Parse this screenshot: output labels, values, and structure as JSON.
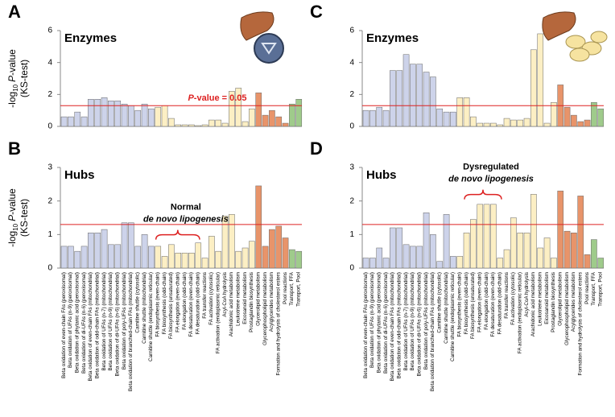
{
  "chart_data": [
    {
      "type": "bar",
      "panel": "A",
      "title": "Enzymes",
      "y_label": {
        "prefix": "-log",
        "sub": "10",
        "italic": "P",
        "rest": "-value",
        "line2": "(KS-test)"
      },
      "ylim": [
        0,
        6
      ],
      "yticks": [
        0,
        2,
        4,
        6
      ],
      "threshold": 1.3,
      "threshold_label": {
        "italic": "P",
        "rest": "-value = 0.05"
      },
      "values": [
        0.6,
        0.6,
        0.9,
        0.6,
        1.7,
        1.7,
        1.8,
        1.6,
        1.6,
        1.4,
        1.3,
        1.0,
        1.4,
        1.1,
        1.2,
        1.3,
        0.5,
        0.1,
        0.1,
        0.1,
        0.05,
        0.1,
        0.4,
        0.4,
        0.2,
        2.2,
        2.4,
        0.3,
        1.1,
        2.1,
        0.7,
        1.0,
        0.6,
        0.2,
        1.4,
        1.7
      ]
    },
    {
      "type": "bar",
      "panel": "B",
      "title": "Hubs",
      "y_label": {
        "prefix": "-log",
        "sub": "10",
        "italic": "P",
        "rest": "-value",
        "line2": "(KS-test)"
      },
      "ylim": [
        0,
        3
      ],
      "yticks": [
        0,
        1,
        2,
        3
      ],
      "threshold": 1.3,
      "annotation": {
        "line1": "Normal",
        "line2": "de novo lipogenesis"
      },
      "categories": [
        "Beta oxidation of even-chain FAs (peroxisomal)",
        "Beta oxidation of UFAs (n-9) (peroxisomal)",
        "Beta oxidation of phytanic acid (peroxisomal)",
        "Beta oxidation of di-UFAs (n-6) (peroxisomal)",
        "Beta oxidation of even-chain FAs (mitochondrial)",
        "Beta oxidation of odd-chain FAs (mitochondrial)",
        "Beta oxidation of UFAs (n-7) (mitochondrial)",
        "Beta oxidation of UFAs (n-9) (mitochondrial)",
        "Beta oxidation of di-UFAs (n-6) (mitochondrial)",
        "Beta oxidation of poly-UFAs (mitochondrial)",
        "Beta oxidation of branched-chain FAs (mitochondrial)",
        "Carnitine shuttle (cytosolic)",
        "Carnitine shuttle (mitochondrial)",
        "Carnitine shuttle (endoplasmic reticular)",
        "FA biosynthesis (even-chain)",
        "FA biosynthesis (odd-chain)",
        "FA biosynthesis (unsaturated)",
        "FA elongation (even-chain)",
        "FA elongation (odd-chain)",
        "FA desaturation (even-chain)",
        "FA desaturation (odd-chain)",
        "FA transfer reactions",
        "FA activation (cytosolic)",
        "FA activation (endoplasmic reticular)",
        "Acyl-CoA hydrolysis",
        "Arachidonic acid metabolism",
        "Leukotriene metabolism",
        "Eicosanoid metabolism",
        "Prostaglandin biosynthesis",
        "Glycerolipid metabolism",
        "Glycerophospholipid metabolism",
        "Acylglycerides metabolism",
        "Formation and hydrolysis of cholesterol esters",
        "Pool reactions",
        "Transport, FFA",
        "Transport, Pool"
      ],
      "values": [
        0.65,
        0.65,
        0.5,
        0.65,
        1.05,
        1.05,
        1.15,
        0.7,
        0.7,
        1.35,
        1.35,
        0.65,
        1.0,
        0.65,
        0.65,
        0.35,
        0.7,
        0.45,
        0.45,
        0.45,
        0.75,
        0.3,
        0.95,
        0.5,
        1.55,
        1.6,
        0.5,
        0.6,
        0.8,
        2.45,
        0.65,
        1.15,
        1.25,
        0.9,
        0.55,
        0.5
      ]
    },
    {
      "type": "bar",
      "panel": "C",
      "title": "Enzymes",
      "ylim": [
        0,
        6
      ],
      "yticks": [
        0,
        2,
        4,
        6
      ],
      "threshold": 1.3,
      "values": [
        1.0,
        1.0,
        1.2,
        1.0,
        3.5,
        3.5,
        4.5,
        3.9,
        3.9,
        3.4,
        3.1,
        1.1,
        0.9,
        0.9,
        1.8,
        1.8,
        0.6,
        0.2,
        0.2,
        0.2,
        0.1,
        0.5,
        0.4,
        0.4,
        0.5,
        4.8,
        5.8,
        0.2,
        1.5,
        2.6,
        1.2,
        0.7,
        0.3,
        0.4,
        1.5,
        1.1
      ]
    },
    {
      "type": "bar",
      "panel": "D",
      "title": "Hubs",
      "ylim": [
        0,
        3
      ],
      "yticks": [
        0,
        1,
        2,
        3
      ],
      "threshold": 1.3,
      "annotation": {
        "line1": "Dysregulated",
        "line2": "de novo lipogenesis"
      },
      "categories": [
        "Beta oxidation of even-chain FAs (peroxisomal)",
        "Beta oxidation of UFAs (n-9) (peroxisomal)",
        "Beta oxidation of phytanic acid (peroxisomal)",
        "Beta oxidation of di-UFAs (n-6) (peroxisomal)",
        "Beta oxidation of even-chain FAs (mitochondrial)",
        "Beta oxidation of odd-chain FAs (mitochondrial)",
        "Beta oxidation of UFAs (n-7) (mitochondrial)",
        "Beta oxidation of UFAs (n-9) (mitochondrial)",
        "Beta oxidation of di-UFAs (n-6) (mitochondrial)",
        "Beta oxidation of poly-UFAs (mitochondrial)",
        "Beta oxidation of branched-chain FAs (mitochondrial)",
        "Carnitine shuttle (cytosolic)",
        "Carnitine shuttle (mitochondrial)",
        "Carnitine shuttle (endoplasmic reticular)",
        "FA biosynthesis (even-chain)",
        "FA biosynthesis (odd-chain)",
        "FA biosynthesis (unsaturated)",
        "FA elongation (even-chain)",
        "FA elongation (odd-chain)",
        "FA desaturation (even-chain)",
        "FA desaturation (odd-chain)",
        "FA transfer reactions",
        "FA activation (cytosolic)",
        "FA activation (endoplasmic reticular)",
        "Acyl-CoA hydrolysis",
        "Arachidonic acid metabolism",
        "Leukotriene metabolism",
        "Eicosanoid metabolism",
        "Prostaglandin biosynthesis",
        "Glycerolipid metabolism",
        "Glycerophospholipid metabolism",
        "Acylglycerides metabolism",
        "Formation and hydrolysis of cholesterol esters",
        "Pool reactions",
        "Transport, FFA",
        "Transport, Pool"
      ],
      "values": [
        0.3,
        0.3,
        0.6,
        0.3,
        1.2,
        1.2,
        0.7,
        0.65,
        0.65,
        1.65,
        1.0,
        0.2,
        1.6,
        0.35,
        0.35,
        1.05,
        1.45,
        1.9,
        1.9,
        1.9,
        0.3,
        0.55,
        1.5,
        1.05,
        1.05,
        2.2,
        0.6,
        0.9,
        0.3,
        2.3,
        1.1,
        1.05,
        2.15,
        0.4,
        0.85,
        0.3
      ]
    }
  ]
}
